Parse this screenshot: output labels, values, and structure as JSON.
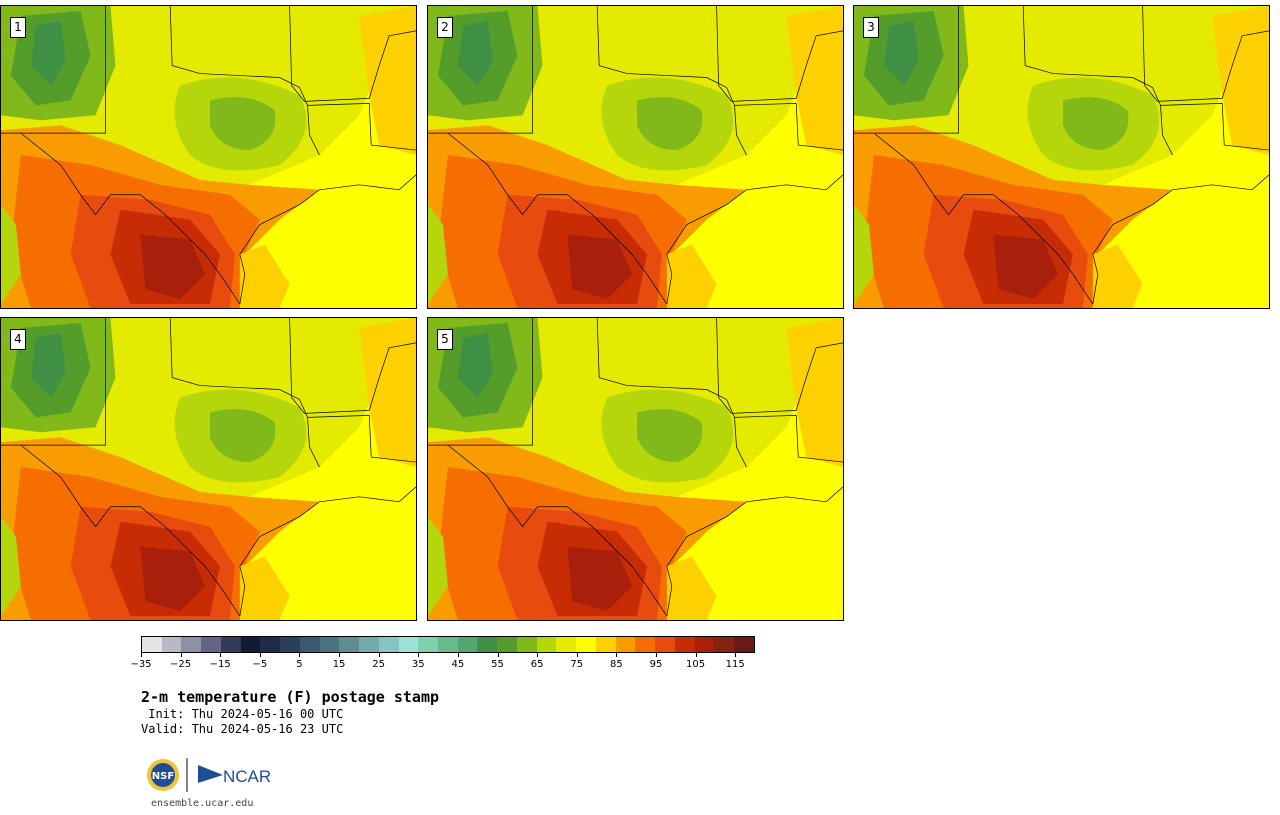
{
  "panels": [
    {
      "label": "1"
    },
    {
      "label": "2"
    },
    {
      "label": "3"
    },
    {
      "label": "4"
    },
    {
      "label": "5"
    }
  ],
  "colorbar": {
    "colors": [
      "#e4e4e8",
      "#b8b8c6",
      "#8e90a6",
      "#616683",
      "#343a5a",
      "#131a34",
      "#1f2b48",
      "#2b3f5c",
      "#3b586f",
      "#4d7380",
      "#5e8d93",
      "#73aaab",
      "#88c5c2",
      "#9be4d7",
      "#7fd0ad",
      "#69bb8c",
      "#54a76f",
      "#3f9044",
      "#559d2a",
      "#80b919",
      "#b6d60c",
      "#e4ea00",
      "#ffff00",
      "#fdd100",
      "#f99c00",
      "#f66e00",
      "#e84b0e",
      "#c72c05",
      "#a81f0c",
      "#852311",
      "#6a1a14"
    ],
    "tick_labels": [
      "−35",
      "−25",
      "−15",
      "−5",
      "5",
      "15",
      "25",
      "35",
      "45",
      "55",
      "65",
      "75",
      "85",
      "95",
      "105",
      "115"
    ]
  },
  "title": "2-m temperature (F) postage stamp",
  "init": " Init: Thu 2024-05-16 00 UTC",
  "valid": "Valid: Thu 2024-05-16 23 UTC",
  "logo": {
    "nsf_text": "NSF",
    "ncar_text": "NCAR"
  },
  "site": "ensemble.ucar.edu"
}
